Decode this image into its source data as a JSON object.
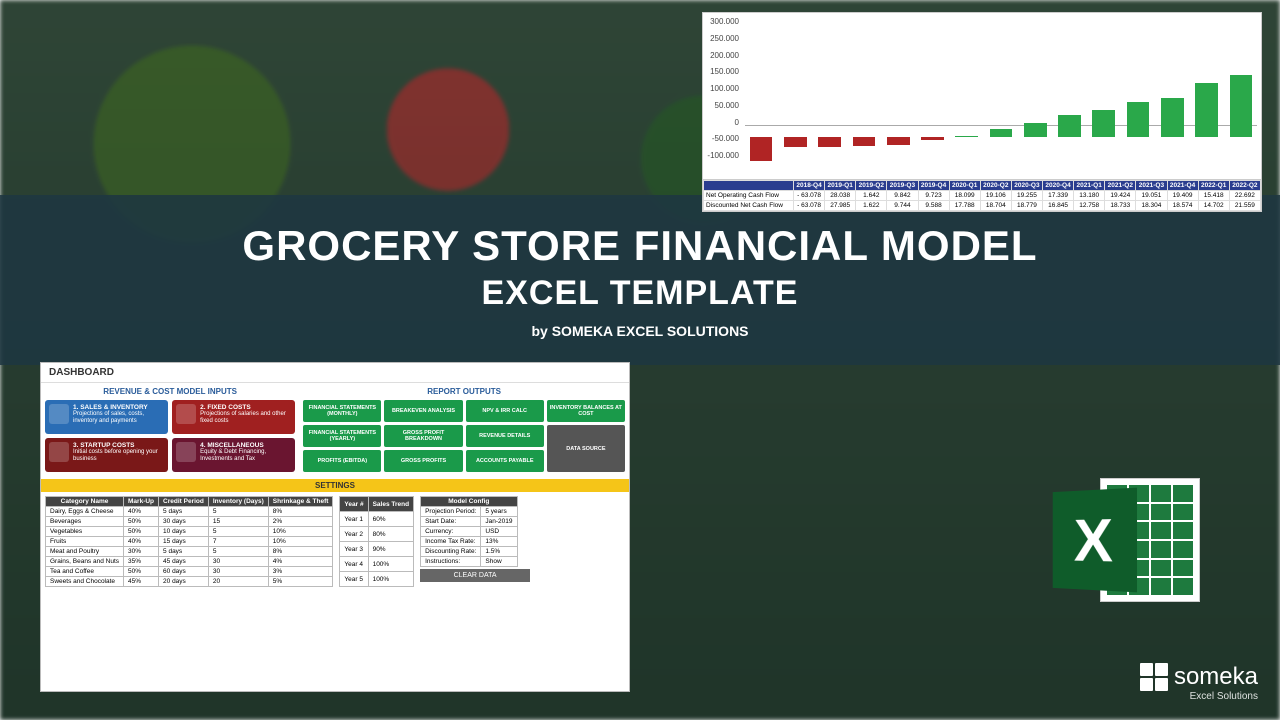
{
  "title": {
    "main": "GROCERY STORE FINANCIAL MODEL",
    "sub": "EXCEL TEMPLATE",
    "byline": "by SOMEKA EXCEL SOLUTIONS"
  },
  "someka": {
    "brand": "someka",
    "tagline": "Excel Solutions"
  },
  "excel_icon": {
    "letter": "X"
  },
  "colors": {
    "bar_pos": "#2aa84a",
    "bar_neg": "#b02424",
    "header_blue": "#2a3d8f"
  },
  "cashflow": {
    "ylim": [
      -100000,
      300000
    ],
    "yticks": [
      "300.000",
      "250.000",
      "200.000",
      "150.000",
      "100.000",
      "50.000",
      "0",
      "-50.000",
      "-100.000"
    ],
    "periods": [
      "2018-Q4",
      "2019-Q1",
      "2019-Q2",
      "2019-Q3",
      "2019-Q4",
      "2020-Q1",
      "2020-Q2",
      "2020-Q3",
      "2020-Q4",
      "2021-Q1",
      "2021-Q2",
      "2021-Q3",
      "2021-Q4",
      "2022-Q1",
      "2022-Q2"
    ],
    "bars": [
      -63078,
      -28000,
      -28000,
      -24000,
      -22000,
      -9000,
      2000,
      20000,
      35000,
      55000,
      70000,
      90000,
      100000,
      140000,
      160000
    ],
    "rows": [
      {
        "label": "Net Operating Cash Flow",
        "vals": [
          "- 63.078",
          "28.038",
          "1.642",
          "9.842",
          "9.723",
          "18.099",
          "19.106",
          "19.255",
          "17.339",
          "13.180",
          "19.424",
          "19.051",
          "19.409",
          "15.418",
          "22.692"
        ]
      },
      {
        "label": "Discounted Net Cash Flow",
        "vals": [
          "- 63.078",
          "27.985",
          "1.622",
          "9.744",
          "9.588",
          "17.788",
          "18.704",
          "18.779",
          "16.845",
          "12.758",
          "18.733",
          "18.304",
          "18.574",
          "14.702",
          "21.559"
        ]
      }
    ]
  },
  "dashboard": {
    "title": "DASHBOARD",
    "inputs_title": "REVENUE & COST MODEL INPUTS",
    "outputs_title": "REPORT OUTPUTS",
    "input_cards": [
      {
        "cls": "card-blue",
        "title": "1. SALES & INVENTORY",
        "desc": "Projections of sales, costs, inventory and payments"
      },
      {
        "cls": "card-red",
        "title": "2. FIXED COSTS",
        "desc": "Projections of salaries and other fixed costs"
      },
      {
        "cls": "card-darkred",
        "title": "3. STARTUP COSTS",
        "desc": "Initial costs before opening your business"
      },
      {
        "cls": "card-maroon",
        "title": "4. MISCELLANEOUS",
        "desc": "Equity & Debt Financing, Investments and Tax"
      }
    ],
    "output_buttons": [
      "FINANCIAL STATEMENTS (MONTHLY)",
      "BREAKEVEN ANALYSIS",
      "NPV & IRR CALC",
      "INVENTORY BALANCES AT COST",
      "FINANCIAL STATEMENTS (YEARLY)",
      "GROSS PROFIT BREAKDOWN",
      "REVENUE DETAILS",
      "DATA SOURCE",
      "PROFITS (EBITDA)",
      "GROSS PROFITS",
      "ACCOUNTS PAYABLE",
      ""
    ],
    "settings_label": "SETTINGS",
    "categories": {
      "headers": [
        "Category Name",
        "Mark-Up",
        "Credit Period",
        "Inventory (Days)",
        "Shrinkage & Theft"
      ],
      "rows": [
        [
          "Dairy, Eggs & Cheese",
          "40%",
          "5 days",
          "5",
          "8%"
        ],
        [
          "Beverages",
          "50%",
          "30 days",
          "15",
          "2%"
        ],
        [
          "Vegetables",
          "50%",
          "10 days",
          "5",
          "10%"
        ],
        [
          "Fruits",
          "40%",
          "15 days",
          "7",
          "10%"
        ],
        [
          "Meat and Poultry",
          "30%",
          "5 days",
          "5",
          "8%"
        ],
        [
          "Grains, Beans and Nuts",
          "35%",
          "45 days",
          "30",
          "4%"
        ],
        [
          "Tea and Coffee",
          "50%",
          "60 days",
          "30",
          "3%"
        ],
        [
          "Sweets and Chocolate",
          "45%",
          "20 days",
          "20",
          "5%"
        ]
      ]
    },
    "sales_trend": {
      "headers": [
        "Year #",
        "Sales Trend"
      ],
      "rows": [
        [
          "Year 1",
          "60%"
        ],
        [
          "Year 2",
          "80%"
        ],
        [
          "Year 3",
          "90%"
        ],
        [
          "Year 4",
          "100%"
        ],
        [
          "Year 5",
          "100%"
        ]
      ]
    },
    "model_config": {
      "header": "Model Config",
      "rows": [
        [
          "Projection Period:",
          "5 years"
        ],
        [
          "Start Date:",
          "Jan-2019"
        ],
        [
          "Currency:",
          "USD"
        ],
        [
          "Income Tax Rate:",
          "13%"
        ],
        [
          "Discounting Rate:",
          "1.5%"
        ],
        [
          "Instructions:",
          "Show"
        ]
      ]
    },
    "clear_btn": "CLEAR DATA"
  }
}
